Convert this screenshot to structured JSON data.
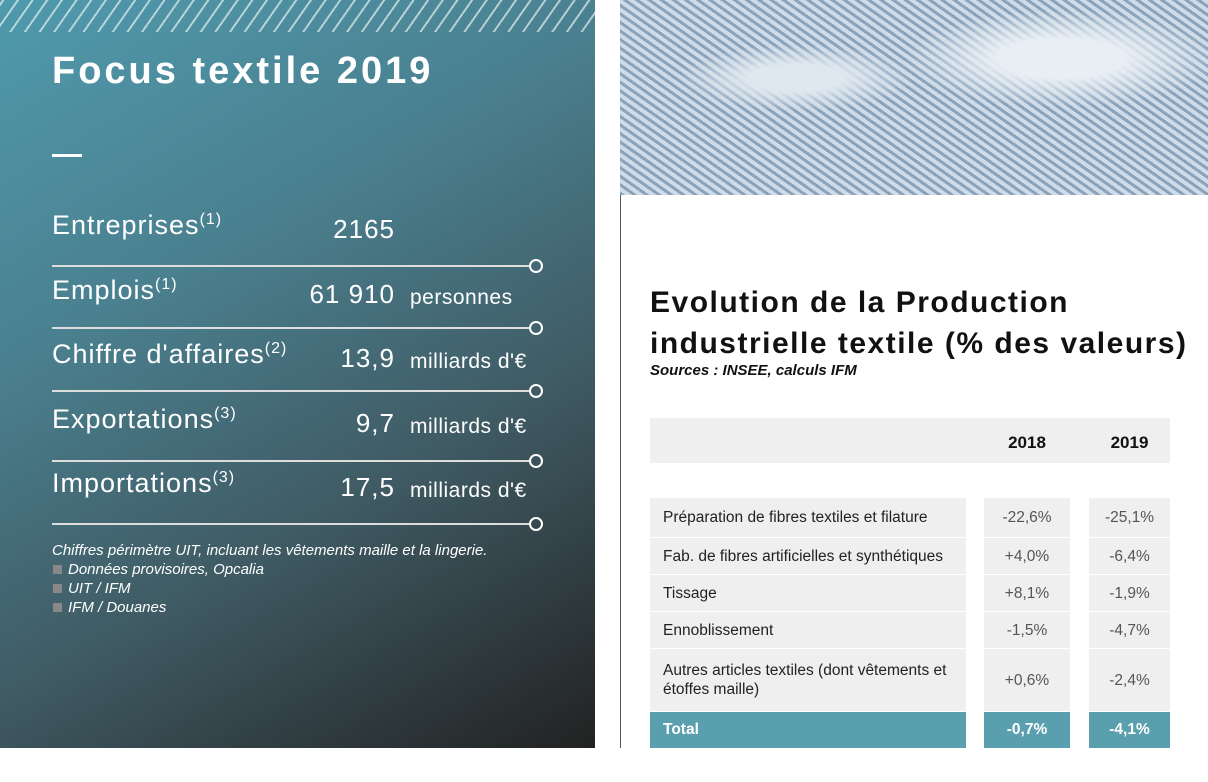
{
  "left": {
    "title": "Focus textile 2019",
    "stats": [
      {
        "label": "Entreprises",
        "note": "(1)",
        "value": "2165"
      },
      {
        "label": "Emplois",
        "note": "(1)",
        "value": "61 910",
        "unit": "personnes"
      },
      {
        "label": "Chiffre d'affaires",
        "note": "(2)",
        "value": "13,9",
        "unit": "milliards d'€"
      },
      {
        "label": "Exportations",
        "note": "(3)",
        "value": "9,7",
        "unit": "milliards d'€"
      },
      {
        "label": "Importations",
        "note": "(3)",
        "value": "17,5",
        "unit": "milliards d'€"
      }
    ],
    "footnote": "Chiffres périmètre UIT, incluant les vêtements maille et la lingerie.",
    "sources": [
      "Données provisoires, Opcalia",
      "UIT / IFM",
      "IFM / Douanes"
    ]
  },
  "right": {
    "title": "Evolution de la Production industrielle textile (% des valeurs)",
    "sources": "Sources : INSEE, calculs IFM",
    "table": {
      "columns": [
        "2018",
        "2019"
      ],
      "rows": [
        [
          "Préparation de fibres textiles et filature",
          "-22,6%",
          "-25,1%"
        ],
        [
          "Fab. de fibres artificielles et synthétiques",
          "+4,0%",
          "-6,4%"
        ],
        [
          "Tissage",
          "+8,1%",
          "-1,9%"
        ],
        [
          "Ennoblissement",
          "-1,5%",
          "-4,7%"
        ],
        [
          "Autres articles textiles (dont vêtements et étoffes maille)",
          "+0,6%",
          "-2,4%"
        ]
      ],
      "total": [
        "Total",
        "-0,7%",
        "-4,1%"
      ]
    }
  }
}
